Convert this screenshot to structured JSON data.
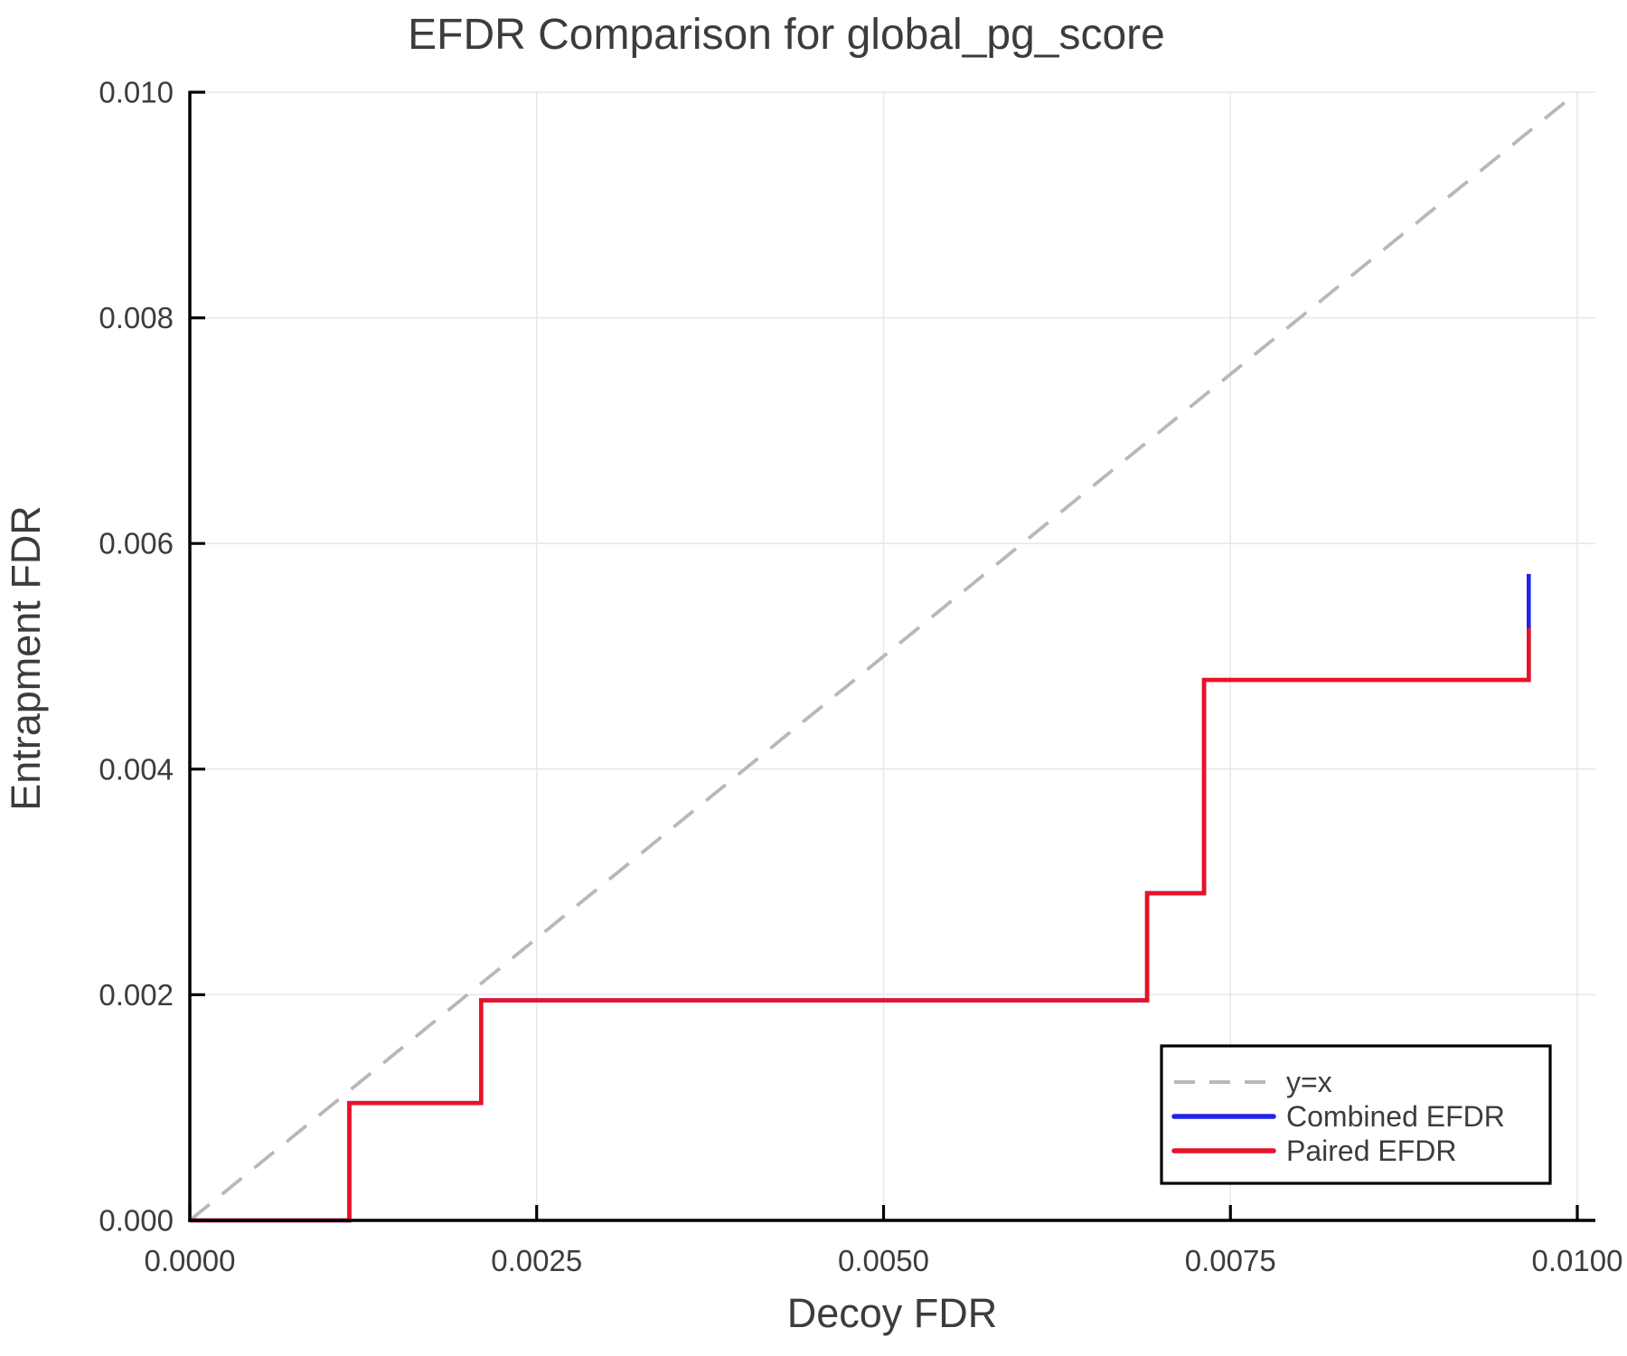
{
  "chart_data": {
    "type": "line",
    "title": "EFDR Comparison for global_pg_score",
    "xlabel": "Decoy FDR",
    "ylabel": "Entrapment FDR",
    "xlim": [
      0.0,
      0.01013
    ],
    "ylim": [
      0.0,
      0.01
    ],
    "grid": true,
    "x_ticks": {
      "values": [
        0.0,
        0.0025,
        0.005,
        0.0075,
        0.01
      ],
      "labels": [
        "0.0000",
        "0.0025",
        "0.0050",
        "0.0075",
        "0.0100"
      ]
    },
    "y_ticks": {
      "values": [
        0.0,
        0.002,
        0.004,
        0.006,
        0.008,
        0.01
      ],
      "labels": [
        "0.000",
        "0.002",
        "0.004",
        "0.006",
        "0.008",
        "0.010"
      ]
    },
    "legend": {
      "position": "bottom-right"
    },
    "series": [
      {
        "name": "y=x",
        "style": "dashed",
        "color": "#b8b8b8",
        "points": [
          [
            0.0,
            0.0
          ],
          [
            0.01,
            0.01
          ]
        ]
      },
      {
        "name": "Combined EFDR",
        "style": "solid",
        "color": "#2323e8",
        "points": [
          [
            0.0,
            0.0
          ],
          [
            0.00115,
            0.0
          ],
          [
            0.00115,
            0.00104
          ],
          [
            0.0021,
            0.00104
          ],
          [
            0.0021,
            0.00195
          ],
          [
            0.0069,
            0.00195
          ],
          [
            0.0069,
            0.0029
          ],
          [
            0.00731,
            0.0029
          ],
          [
            0.00731,
            0.00479
          ],
          [
            0.00965,
            0.00479
          ],
          [
            0.00965,
            0.00573
          ]
        ]
      },
      {
        "name": "Paired EFDR",
        "style": "solid",
        "color": "#ea1226",
        "points": [
          [
            0.0,
            0.0
          ],
          [
            0.00115,
            0.0
          ],
          [
            0.00115,
            0.00104
          ],
          [
            0.0021,
            0.00104
          ],
          [
            0.0021,
            0.00195
          ],
          [
            0.0069,
            0.00195
          ],
          [
            0.0069,
            0.0029
          ],
          [
            0.00731,
            0.0029
          ],
          [
            0.00731,
            0.00479
          ],
          [
            0.00965,
            0.00479
          ],
          [
            0.00965,
            0.00525
          ]
        ]
      }
    ]
  },
  "colors": {
    "axis": "#000000",
    "grid": "#e7e7e7",
    "text": "#3c3c3c",
    "legend_border": "#000000",
    "legend_fill": "#ffffff"
  }
}
